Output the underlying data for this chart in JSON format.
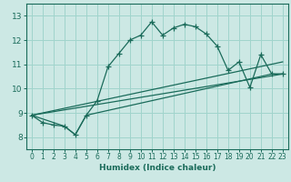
{
  "xlabel": "Humidex (Indice chaleur)",
  "bg_color": "#cce8e4",
  "grid_color": "#a0d4cc",
  "line_color": "#1a6b5a",
  "xlim": [
    -0.5,
    23.5
  ],
  "ylim": [
    7.5,
    13.5
  ],
  "xticks": [
    0,
    1,
    2,
    3,
    4,
    5,
    6,
    7,
    8,
    9,
    10,
    11,
    12,
    13,
    14,
    15,
    16,
    17,
    18,
    19,
    20,
    21,
    22,
    23
  ],
  "yticks": [
    8,
    9,
    10,
    11,
    12,
    13
  ],
  "main_x": [
    0,
    1,
    2,
    3,
    4,
    5,
    6,
    7,
    8,
    9,
    10,
    11,
    12,
    13,
    14,
    15,
    16,
    17,
    18,
    19,
    20,
    21,
    22,
    23
  ],
  "main_y": [
    8.9,
    8.6,
    8.5,
    8.45,
    8.1,
    8.9,
    9.5,
    10.9,
    11.45,
    12.0,
    12.2,
    12.75,
    12.2,
    12.5,
    12.65,
    12.55,
    12.25,
    11.75,
    10.75,
    11.1,
    10.05,
    11.4,
    10.6,
    10.6
  ],
  "line2_x": [
    0,
    3,
    4,
    5,
    22,
    23
  ],
  "line2_y": [
    8.9,
    8.45,
    8.1,
    8.9,
    10.6,
    10.6
  ],
  "line3_x": [
    0,
    23
  ],
  "line3_y": [
    8.9,
    11.1
  ],
  "line4_x": [
    0,
    23
  ],
  "line4_y": [
    8.9,
    10.6
  ]
}
